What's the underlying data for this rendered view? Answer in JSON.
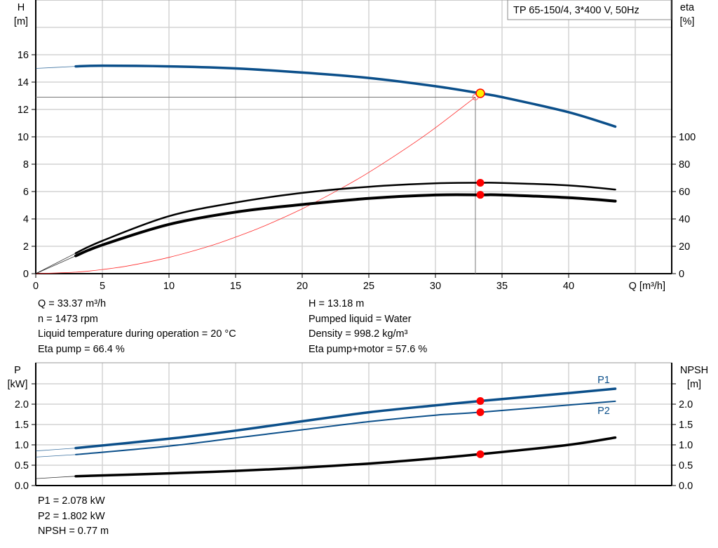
{
  "chart_data": [
    {
      "type": "line",
      "title": "TP 65-150/4, 3*400 V, 50Hz",
      "xlabel": "Q [m³/h]",
      "ylabel_left": [
        "H",
        "[m]"
      ],
      "ylabel_right": [
        "eta",
        "[%]"
      ],
      "xlim": [
        0,
        48
      ],
      "ylim_left": [
        0,
        20
      ],
      "ylim_right": [
        0,
        100
      ],
      "x_ticks": [
        "0",
        "5",
        "10",
        "15",
        "20",
        "25",
        "30",
        "35",
        "40"
      ],
      "y_ticks_left": [
        "0",
        "2",
        "4",
        "6",
        "8",
        "10",
        "12",
        "14",
        "16"
      ],
      "y_ticks_right": [
        "0",
        "20",
        "40",
        "60",
        "80",
        "100"
      ],
      "grid": true,
      "series": [
        {
          "id": "H",
          "axis": "left",
          "color": "#0b4f8a",
          "x": [
            0,
            3,
            5,
            10,
            15,
            20,
            25,
            30,
            33.37,
            35,
            40,
            43.5
          ],
          "values": [
            15.0,
            15.15,
            15.2,
            15.15,
            15.0,
            14.7,
            14.3,
            13.7,
            13.18,
            12.9,
            11.8,
            10.75
          ]
        },
        {
          "id": "system-curve",
          "axis": "left",
          "color": "#ff2a2a",
          "x": [
            0,
            3,
            5,
            7,
            10,
            13,
            15,
            17,
            20,
            23,
            25,
            28,
            30,
            33
          ],
          "values": [
            0,
            0.11,
            0.3,
            0.58,
            1.19,
            2.0,
            2.67,
            3.42,
            4.74,
            6.27,
            7.4,
            9.29,
            10.66,
            12.9
          ]
        },
        {
          "id": "eta-pump",
          "axis": "right",
          "color": "#000000",
          "x": [
            0,
            3,
            5,
            10,
            15,
            20,
            25,
            30,
            33.37,
            35,
            40,
            43.5
          ],
          "values": [
            0,
            15,
            24,
            42,
            52,
            59,
            63.5,
            66,
            66.4,
            66.3,
            64.5,
            61.5
          ]
        },
        {
          "id": "eta-pump-motor",
          "axis": "right",
          "color": "#000000",
          "x": [
            0,
            3,
            5,
            10,
            15,
            20,
            25,
            30,
            33.37,
            35,
            40,
            43.5
          ],
          "values": [
            0,
            13,
            21,
            36,
            45,
            50.5,
            55,
            57.5,
            57.6,
            57.5,
            55.5,
            53
          ]
        }
      ],
      "duty_point": {
        "Q": 33.37,
        "H": 13.18,
        "eta_pump": 66.4,
        "eta_pump_motor": 57.6
      },
      "required_point": {
        "Q": 33.0,
        "H": 12.9
      }
    },
    {
      "type": "line",
      "ylabel_left": [
        "P",
        "[kW]"
      ],
      "ylabel_right": [
        "NPSH",
        "[m]"
      ],
      "xlim": [
        0,
        48
      ],
      "ylim_left": [
        0,
        2.5
      ],
      "ylim_right": [
        0,
        2.5
      ],
      "y_ticks_left": [
        "0.0",
        "0.5",
        "1.0",
        "1.5",
        "2.0"
      ],
      "y_ticks_right": [
        "0.0",
        "0.5",
        "1.0",
        "1.5",
        "2.0"
      ],
      "grid": true,
      "series": [
        {
          "name": "P1",
          "color": "#0b4f8a",
          "x": [
            0,
            3,
            10,
            15,
            20,
            25,
            30,
            33.37,
            40,
            43.5
          ],
          "values": [
            0.85,
            0.92,
            1.15,
            1.35,
            1.58,
            1.8,
            1.97,
            2.078,
            2.27,
            2.38
          ]
        },
        {
          "name": "P2",
          "color": "#0b4f8a",
          "x": [
            0,
            3,
            10,
            15,
            20,
            25,
            30,
            33.37,
            40,
            43.5
          ],
          "values": [
            0.7,
            0.76,
            0.97,
            1.17,
            1.37,
            1.57,
            1.73,
            1.802,
            1.98,
            2.07
          ]
        },
        {
          "id": "NPSH",
          "color": "#000000",
          "x": [
            0,
            3,
            10,
            15,
            20,
            25,
            30,
            33.37,
            40,
            43.5
          ],
          "values": [
            0.17,
            0.23,
            0.3,
            0.36,
            0.44,
            0.54,
            0.67,
            0.77,
            1.0,
            1.18
          ]
        }
      ],
      "duty_point": {
        "Q": 33.37,
        "P1": 2.078,
        "P2": 1.802,
        "NPSH": 0.77
      }
    }
  ],
  "readout_top_left": [
    "Q = 33.37 m³/h",
    "n = 1473 rpm",
    "Liquid temperature during operation = 20 °C",
    "Eta pump = 66.4 %"
  ],
  "readout_top_right": [
    "H = 13.18 m",
    "Pumped liquid = Water",
    "Density = 998.2 kg/m³",
    "Eta pump+motor = 57.6 %"
  ],
  "readout_bottom": [
    "P1 = 2.078 kW",
    "P2 = 1.802 kW",
    "NPSH = 0.77 m"
  ]
}
